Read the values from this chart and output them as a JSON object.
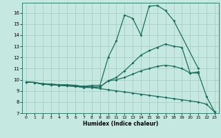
{
  "xlabel": "Humidex (Indice chaleur)",
  "bg_color": "#c5e8e0",
  "grid_color": "#a8cec8",
  "line_color": "#1a6e60",
  "xlim": [
    -0.5,
    23.5
  ],
  "ylim": [
    7,
    16.9
  ],
  "yticks": [
    7,
    8,
    9,
    10,
    11,
    12,
    13,
    14,
    15,
    16
  ],
  "xticks": [
    0,
    1,
    2,
    3,
    4,
    5,
    6,
    7,
    8,
    9,
    10,
    11,
    12,
    13,
    14,
    15,
    16,
    17,
    18,
    19,
    20,
    21,
    22,
    23
  ],
  "lines": [
    {
      "x": [
        0,
        1,
        2,
        3,
        4,
        5,
        6,
        7,
        8,
        9,
        10,
        11,
        12,
        13,
        14,
        15,
        16,
        17,
        18,
        21
      ],
      "y": [
        9.8,
        9.75,
        9.6,
        9.6,
        9.55,
        9.55,
        9.5,
        9.4,
        9.5,
        9.5,
        12.0,
        13.5,
        15.8,
        15.5,
        14.0,
        16.6,
        16.65,
        16.2,
        15.3,
        11.0
      ]
    },
    {
      "x": [
        0,
        1,
        2,
        3,
        4,
        5,
        6,
        7,
        8,
        9,
        10,
        11,
        12,
        13,
        14,
        15,
        16,
        17,
        18,
        19,
        20,
        21
      ],
      "y": [
        9.8,
        9.75,
        9.6,
        9.55,
        9.5,
        9.45,
        9.4,
        9.35,
        9.35,
        9.35,
        9.9,
        10.2,
        10.8,
        11.5,
        12.2,
        12.6,
        12.9,
        13.2,
        13.0,
        12.9,
        10.6,
        10.7
      ]
    },
    {
      "x": [
        0,
        1,
        2,
        3,
        4,
        5,
        6,
        7,
        8,
        9,
        10,
        11,
        12,
        13,
        14,
        15,
        16,
        17,
        18,
        19,
        20,
        21,
        22,
        23
      ],
      "y": [
        9.8,
        9.75,
        9.65,
        9.6,
        9.55,
        9.5,
        9.45,
        9.4,
        9.35,
        9.35,
        9.9,
        10.0,
        10.2,
        10.5,
        10.8,
        11.0,
        11.2,
        11.3,
        11.2,
        11.0,
        10.6,
        10.6,
        8.5,
        7.1
      ]
    },
    {
      "x": [
        0,
        1,
        2,
        3,
        4,
        5,
        6,
        7,
        8,
        9,
        10,
        11,
        12,
        13,
        14,
        15,
        16,
        17,
        18,
        19,
        20,
        21,
        22,
        23
      ],
      "y": [
        9.8,
        9.75,
        9.6,
        9.55,
        9.5,
        9.45,
        9.4,
        9.3,
        9.3,
        9.2,
        9.1,
        9.0,
        8.9,
        8.8,
        8.7,
        8.6,
        8.5,
        8.4,
        8.3,
        8.2,
        8.1,
        8.0,
        7.8,
        7.1
      ]
    }
  ]
}
